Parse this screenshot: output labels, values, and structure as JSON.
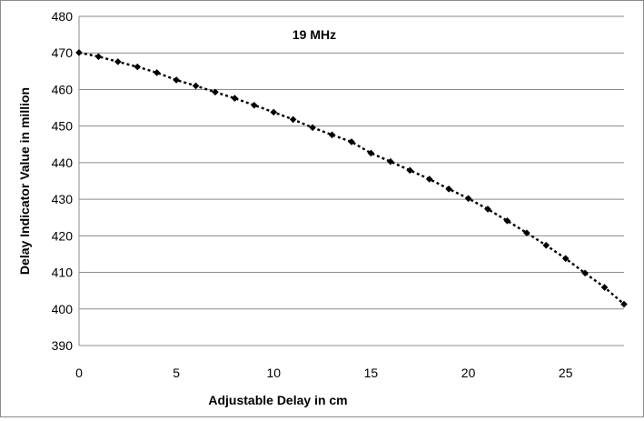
{
  "chart_data": {
    "type": "line",
    "title": "",
    "annotation": "19 MHz",
    "xlabel": "Adjustable Delay in cm",
    "ylabel": "Delay Indicator Value in million",
    "xlim": [
      0,
      28
    ],
    "ylim": [
      390,
      480
    ],
    "x_ticks": [
      "0",
      "5",
      "10",
      "15",
      "20",
      "25"
    ],
    "y_ticks": [
      "390",
      "400",
      "410",
      "420",
      "430",
      "440",
      "450",
      "460",
      "470",
      "480"
    ],
    "grid": "horizontal",
    "legend": "none",
    "line_style": "dotted",
    "marker": "diamond",
    "color": "#000000",
    "series": [
      {
        "x": [
          0,
          1,
          2,
          3,
          4,
          5,
          6,
          7,
          8,
          9,
          10,
          11,
          12,
          13,
          14,
          15,
          16,
          17,
          18,
          19,
          20,
          21,
          22,
          23,
          24,
          25,
          26,
          27,
          28
        ],
        "values": [
          470.1,
          469.0,
          467.6,
          466.2,
          464.6,
          462.6,
          461.0,
          459.3,
          457.6,
          455.7,
          453.8,
          451.8,
          449.6,
          447.6,
          445.7,
          442.6,
          440.3,
          437.9,
          435.5,
          432.8,
          430.2,
          427.3,
          424.1,
          420.8,
          417.4,
          413.8,
          409.8,
          405.9,
          401.3
        ]
      }
    ]
  }
}
